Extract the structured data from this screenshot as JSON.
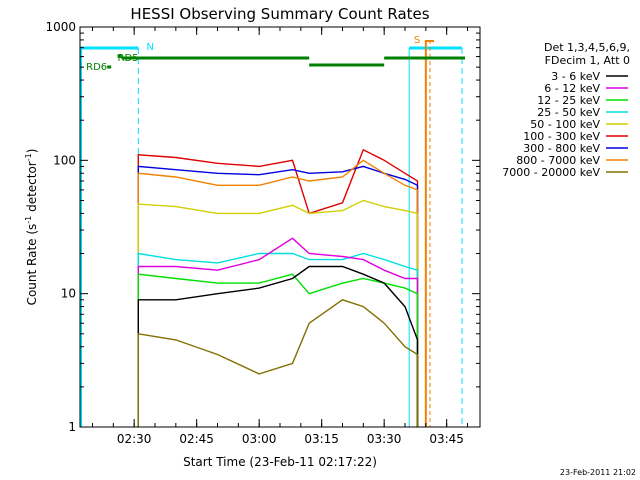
{
  "chart_data": {
    "type": "line",
    "title": "HESSI Observing Summary Count Rates",
    "xlabel": "Start Time (23-Feb-11 02:17:22)",
    "ylabel_main": "Count Rate (s",
    "ylabel_sup1": "-1",
    "ylabel_mid": " detector",
    "ylabel_sup2": "-1",
    "ylabel_end": ")",
    "y_scale": "log",
    "ylim": [
      1,
      1000
    ],
    "xlim": [
      "02:17",
      "03:53"
    ],
    "x_ticks": [
      "02:30",
      "02:45",
      "03:00",
      "03:15",
      "03:30",
      "03:45"
    ],
    "y_ticks": [
      "1",
      "10",
      "100",
      "1000"
    ],
    "legend": {
      "placement": "right",
      "header": [
        "Det 1,3,4,5,6,9,",
        "FDecim 1, Att 0"
      ],
      "entries": [
        {
          "label": "3 - 6 keV",
          "color": "#000000"
        },
        {
          "label": "6 - 12 keV",
          "color": "#e000e0"
        },
        {
          "label": "12 - 25 keV",
          "color": "#00e000"
        },
        {
          "label": "25 - 50 keV",
          "color": "#00e0e0"
        },
        {
          "label": "50 - 100 keV",
          "color": "#d0d000"
        },
        {
          "label": "100 - 300 keV",
          "color": "#e00000"
        },
        {
          "label": "300 - 800 keV",
          "color": "#0000e0"
        },
        {
          "label": "800 - 7000 keV",
          "color": "#f08000"
        },
        {
          "label": "7000 - 20000 keV",
          "color": "#807000"
        }
      ]
    },
    "x": [
      "02:31",
      "02:40",
      "02:50",
      "03:00",
      "03:08",
      "03:12",
      "03:20",
      "03:25",
      "03:30",
      "03:35",
      "03:38"
    ],
    "series": [
      {
        "name": "100 - 300 keV",
        "color": "#e00000",
        "values": [
          110,
          105,
          95,
          90,
          100,
          40,
          48,
          120,
          100,
          80,
          70
        ]
      },
      {
        "name": "300 - 800 keV",
        "color": "#0000e0",
        "values": [
          90,
          85,
          80,
          78,
          85,
          80,
          82,
          90,
          80,
          72,
          65
        ]
      },
      {
        "name": "800 - 7000 keV",
        "color": "#f08000",
        "values": [
          80,
          75,
          65,
          65,
          75,
          70,
          75,
          100,
          80,
          65,
          60
        ]
      },
      {
        "name": "50 - 100 keV",
        "color": "#d0d000",
        "values": [
          47,
          45,
          40,
          40,
          46,
          40,
          42,
          50,
          45,
          42,
          40
        ]
      },
      {
        "name": "25 - 50 keV",
        "color": "#00e0e0",
        "values": [
          20,
          18,
          17,
          20,
          20,
          18,
          18,
          20,
          18,
          16,
          15
        ]
      },
      {
        "name": "6 - 12 keV",
        "color": "#e000e0",
        "values": [
          16,
          16,
          15,
          18,
          26,
          20,
          19,
          18,
          15,
          13,
          13
        ]
      },
      {
        "name": "12 - 25 keV",
        "color": "#00e000",
        "values": [
          14,
          13,
          12,
          12,
          14,
          10,
          12,
          13,
          12,
          11,
          10
        ]
      },
      {
        "name": "3 - 6 keV",
        "color": "#000000",
        "values": [
          9,
          9,
          10,
          11,
          13,
          16,
          16,
          14,
          12,
          8,
          4.5
        ]
      },
      {
        "name": "7000 - 20000 keV",
        "color": "#807000",
        "values": [
          5,
          4.5,
          3.5,
          2.5,
          3,
          6,
          9,
          8,
          6,
          4,
          3.5
        ]
      }
    ],
    "flag_labels": {
      "n": "N",
      "s": "S",
      "rd5": "RD5",
      "rd6": "RD6"
    },
    "footer": "23-Feb-2011 21:02"
  }
}
